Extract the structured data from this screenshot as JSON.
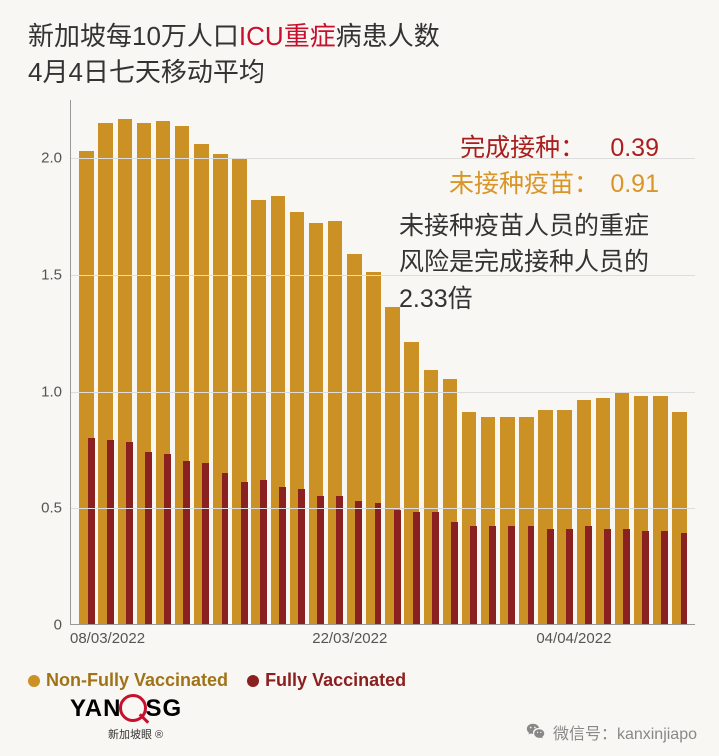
{
  "title": {
    "prefix": "新加坡每10万人口",
    "highlight": "ICU重症",
    "suffix": "病患人数",
    "line2": "4月4日七天移动平均"
  },
  "annotations": {
    "vaccinated_label": "完成接种：",
    "vaccinated_value": "0.39",
    "unvaccinated_label": "未接种疫苗：",
    "unvaccinated_value": "0.91",
    "risk_text": "未接种疫苗人员的重症风险是完成接种人员的2.33倍"
  },
  "chart": {
    "type": "bar",
    "ylim": [
      0,
      2.25
    ],
    "yticks": [
      0,
      0.5,
      1.0,
      1.5,
      2.0
    ],
    "ytick_labels": [
      "0",
      "0.5",
      "1.0",
      "1.5",
      "2.0"
    ],
    "xtick_labels": [
      "08/03/2022",
      "22/03/2022",
      "04/04/2022"
    ],
    "xtick_positions": [
      0,
      14,
      27
    ],
    "series": {
      "non_fully_vaccinated": {
        "color": "#cc9124",
        "label": "Non-Fully Vaccinated",
        "values": [
          2.03,
          2.15,
          2.17,
          2.15,
          2.16,
          2.14,
          2.06,
          2.02,
          2.0,
          1.82,
          1.84,
          1.77,
          1.72,
          1.73,
          1.59,
          1.51,
          1.36,
          1.21,
          1.09,
          1.05,
          0.91,
          0.89,
          0.89,
          0.89,
          0.92,
          0.92,
          0.96,
          0.97,
          0.99,
          0.98,
          0.98,
          0.91
        ]
      },
      "fully_vaccinated": {
        "color": "#8b2020",
        "label": "Fully Vaccinated",
        "values": [
          0.8,
          0.79,
          0.78,
          0.74,
          0.73,
          0.7,
          0.69,
          0.65,
          0.61,
          0.62,
          0.59,
          0.58,
          0.55,
          0.55,
          0.53,
          0.52,
          0.49,
          0.48,
          0.48,
          0.44,
          0.42,
          0.42,
          0.42,
          0.42,
          0.41,
          0.41,
          0.42,
          0.41,
          0.41,
          0.4,
          0.4,
          0.39
        ]
      }
    },
    "background_color": "#f9f7f3",
    "grid_color": "#dddddd",
    "axis_color": "#999999"
  },
  "legend": {
    "nfv_label": "Non-Fully Vaccinated",
    "fv_label": "Fully Vaccinated"
  },
  "logo": {
    "text_left": "YAN",
    "text_right": "SG",
    "subtitle": "新加坡眼 ®"
  },
  "footer": {
    "wechat": "微信号：kanxinjiapo"
  }
}
